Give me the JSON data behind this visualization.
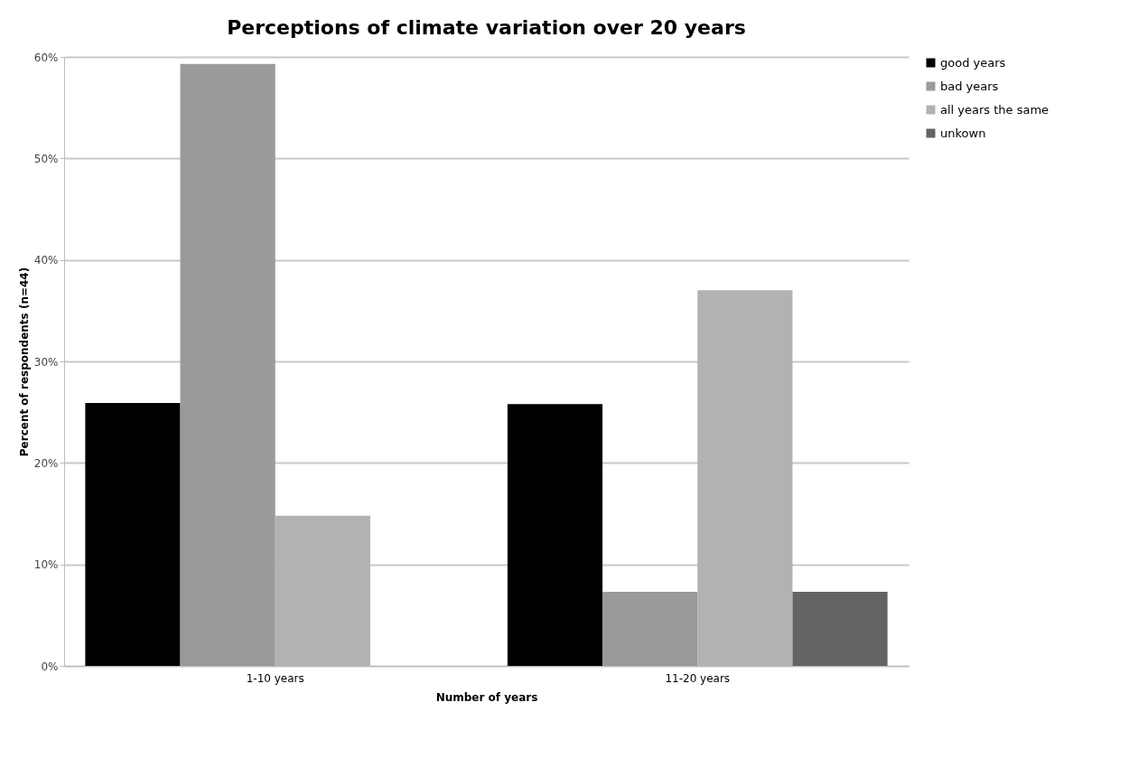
{
  "chart_data": {
    "type": "bar",
    "title": "Perceptions of climate variation over 20 years",
    "xlabel": "Number of years",
    "ylabel": "Percent of respondents (n=44)",
    "categories": [
      "1-10 years",
      "11-20 years"
    ],
    "series": [
      {
        "name": "good years",
        "color": "#000000",
        "values": [
          25.9,
          25.8
        ]
      },
      {
        "name": "bad years",
        "color": "#9a9a9a",
        "values": [
          59.3,
          7.3
        ]
      },
      {
        "name": "all years the same",
        "color": "#b2b2b2",
        "values": [
          14.8,
          37.0
        ]
      },
      {
        "name": "unkown",
        "color": "#646464",
        "values": [
          null,
          7.3
        ]
      }
    ],
    "ylim": [
      0,
      60
    ],
    "yticks": [
      {
        "value": 0,
        "label": "0%"
      },
      {
        "value": 10,
        "label": "10%"
      },
      {
        "value": 20,
        "label": "20%"
      },
      {
        "value": 30,
        "label": "30%"
      },
      {
        "value": 40,
        "label": "40%"
      },
      {
        "value": 50,
        "label": "50%"
      },
      {
        "value": 60,
        "label": "60%"
      }
    ],
    "grid": "y",
    "legend": "right"
  }
}
